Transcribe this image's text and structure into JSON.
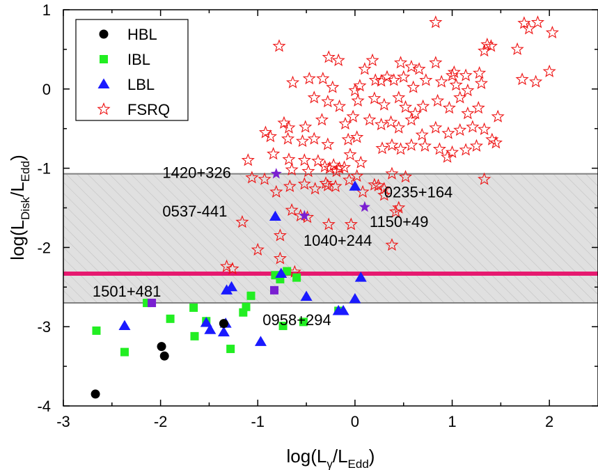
{
  "chart_data": {
    "type": "scatter",
    "xlabel": {
      "prefix": "log(L",
      "sub": "γ",
      "mid": "/L",
      "sub2": "Edd",
      "suffix": ")"
    },
    "ylabel": {
      "prefix": "log(L",
      "sub": "Disk",
      "mid": "/L",
      "sub2": "Edd",
      "suffix": ")"
    },
    "xlim": [
      -3,
      2.5
    ],
    "ylim": [
      -4,
      1
    ],
    "xticks": [
      -3,
      -2,
      -1,
      0,
      1,
      2
    ],
    "yticks": [
      -4,
      -3,
      -2,
      -1,
      0,
      1
    ],
    "grid": false,
    "legend_position": "top-left",
    "band": {
      "ymin": -2.7,
      "ymax": -1.07,
      "color": "#e0e0e0",
      "edge_color": "#808080"
    },
    "hline": {
      "y": -2.33,
      "color": "#e6196f"
    },
    "series": [
      {
        "name": "HBL",
        "marker": "circle",
        "color": "#000000",
        "points": [
          [
            -2.67,
            -3.85
          ],
          [
            -1.99,
            -3.25
          ],
          [
            -1.96,
            -3.37
          ],
          [
            -1.35,
            -2.96
          ]
        ]
      },
      {
        "name": "IBL",
        "marker": "square",
        "color": "#22ee22",
        "points": [
          [
            -2.66,
            -3.05
          ],
          [
            -2.37,
            -3.32
          ],
          [
            -2.14,
            -2.7
          ],
          [
            -1.9,
            -2.9
          ],
          [
            -1.66,
            -2.76
          ],
          [
            -1.65,
            -3.12
          ],
          [
            -1.53,
            -2.93
          ],
          [
            -1.28,
            -3.28
          ],
          [
            -1.15,
            -2.82
          ],
          [
            -1.12,
            -2.75
          ],
          [
            -1.07,
            -2.61
          ],
          [
            -0.82,
            -2.35
          ],
          [
            -0.77,
            -2.4
          ],
          [
            -0.74,
            -2.99
          ],
          [
            -0.53,
            -2.94
          ],
          [
            -0.17,
            -2.8
          ],
          [
            -0.7,
            -2.3
          ],
          [
            -0.6,
            -2.38
          ]
        ]
      },
      {
        "name": "LBL",
        "marker": "triangle",
        "color": "#1a1aff",
        "points": [
          [
            -2.37,
            -2.99
          ],
          [
            -1.53,
            -2.95
          ],
          [
            -1.49,
            -3.04
          ],
          [
            -1.35,
            -3.07
          ],
          [
            -1.33,
            -2.96
          ],
          [
            -1.32,
            -2.54
          ],
          [
            -1.27,
            -2.5
          ],
          [
            -0.97,
            -3.19
          ],
          [
            -0.82,
            -1.61
          ],
          [
            -0.76,
            -2.33
          ],
          [
            -0.5,
            -2.62
          ],
          [
            -0.17,
            -2.8
          ],
          [
            -0.12,
            -2.8
          ],
          [
            0.0,
            -2.65
          ],
          [
            0.06,
            -2.38
          ],
          [
            0.0,
            -1.23
          ]
        ]
      },
      {
        "name": "FSRQ",
        "marker": "star-open",
        "color": "#ee1111",
        "points": [
          [
            -0.78,
            0.54
          ],
          [
            0.83,
            0.84
          ],
          [
            1.74,
            0.83
          ],
          [
            1.88,
            0.84
          ],
          [
            1.79,
            0.76
          ],
          [
            2.03,
            0.71
          ],
          [
            1.36,
            0.56
          ],
          [
            1.33,
            0.48
          ],
          [
            1.4,
            0.54
          ],
          [
            1.67,
            0.5
          ],
          [
            -0.27,
            0.4
          ],
          [
            -0.17,
            0.36
          ],
          [
            0.18,
            0.36
          ],
          [
            0.1,
            0.25
          ],
          [
            0.58,
            0.28
          ],
          [
            0.66,
            0.25
          ],
          [
            0.47,
            0.33
          ],
          [
            0.83,
            0.33
          ],
          [
            1.0,
            0.17
          ],
          [
            1.02,
            0.21
          ],
          [
            1.14,
            0.17
          ],
          [
            1.28,
            0.2
          ],
          [
            1.72,
            0.12
          ],
          [
            1.86,
            0.09
          ],
          [
            2.0,
            0.22
          ],
          [
            -0.64,
            0.08
          ],
          [
            -0.47,
            0.13
          ],
          [
            -0.33,
            0.13
          ],
          [
            -0.23,
            0.02
          ],
          [
            0.0,
            -0.02
          ],
          [
            0.05,
            0.04
          ],
          [
            0.21,
            0.11
          ],
          [
            0.27,
            0.1
          ],
          [
            0.33,
            0.15
          ],
          [
            0.4,
            0.11
          ],
          [
            0.5,
            0.15
          ],
          [
            0.6,
            0.02
          ],
          [
            0.73,
            0.11
          ],
          [
            0.89,
            0.09
          ],
          [
            1.04,
            0.05
          ],
          [
            1.16,
            -0.02
          ],
          [
            1.3,
            0.07
          ],
          [
            -0.42,
            -0.11
          ],
          [
            -0.28,
            -0.16
          ],
          [
            -0.16,
            -0.22
          ],
          [
            0.03,
            -0.15
          ],
          [
            0.2,
            -0.12
          ],
          [
            0.3,
            -0.2
          ],
          [
            0.45,
            -0.11
          ],
          [
            0.52,
            -0.23
          ],
          [
            0.62,
            -0.31
          ],
          [
            0.7,
            -0.22
          ],
          [
            0.85,
            -0.15
          ],
          [
            0.97,
            -0.24
          ],
          [
            1.08,
            -0.11
          ],
          [
            1.16,
            -0.31
          ],
          [
            1.27,
            -0.24
          ],
          [
            1.47,
            -0.35
          ],
          [
            -0.73,
            -0.43
          ],
          [
            -0.68,
            -0.49
          ],
          [
            -0.51,
            -0.48
          ],
          [
            -0.34,
            -0.39
          ],
          [
            -0.1,
            -0.44
          ],
          [
            -0.02,
            -0.35
          ],
          [
            0.15,
            -0.39
          ],
          [
            0.27,
            -0.45
          ],
          [
            0.37,
            -0.42
          ],
          [
            0.45,
            -0.49
          ],
          [
            0.58,
            -0.39
          ],
          [
            0.69,
            -0.58
          ],
          [
            0.83,
            -0.49
          ],
          [
            0.96,
            -0.56
          ],
          [
            1.08,
            -0.52
          ],
          [
            1.21,
            -0.48
          ],
          [
            1.33,
            -0.51
          ],
          [
            -0.92,
            -0.55
          ],
          [
            -0.87,
            -0.6
          ],
          [
            -0.69,
            -0.63
          ],
          [
            -0.54,
            -0.66
          ],
          [
            -0.42,
            -0.63
          ],
          [
            -0.28,
            -0.7
          ],
          [
            -0.07,
            -0.64
          ],
          [
            0.02,
            -0.61
          ],
          [
            0.28,
            -0.75
          ],
          [
            0.38,
            -0.71
          ],
          [
            0.47,
            -0.76
          ],
          [
            0.58,
            -0.71
          ],
          [
            0.72,
            -0.72
          ],
          [
            0.87,
            -0.76
          ],
          [
            1.0,
            -0.8
          ],
          [
            1.14,
            -0.77
          ],
          [
            1.25,
            -0.72
          ],
          [
            1.41,
            -0.64
          ],
          [
            1.45,
            -0.68
          ],
          [
            -1.1,
            -0.9
          ],
          [
            -0.84,
            -0.82
          ],
          [
            -0.68,
            -0.89
          ],
          [
            -0.52,
            -0.9
          ],
          [
            -0.38,
            -0.91
          ],
          [
            -0.22,
            -0.96
          ],
          [
            -0.16,
            -1.0
          ],
          [
            -0.05,
            -0.83
          ],
          [
            0.06,
            -0.93
          ],
          [
            0.95,
            -0.86
          ],
          [
            -0.65,
            -1.02
          ],
          [
            -0.48,
            -1.04
          ],
          [
            -0.31,
            -0.98
          ],
          [
            -0.26,
            -1.0
          ],
          [
            -0.19,
            -1.04
          ],
          [
            -0.11,
            -0.99
          ],
          [
            -1.06,
            -1.12
          ],
          [
            -0.93,
            -1.14
          ],
          [
            -0.67,
            -1.23
          ],
          [
            -0.52,
            -1.2
          ],
          [
            -0.3,
            -1.19
          ],
          [
            -0.2,
            -1.23
          ],
          [
            -0.06,
            -1.15
          ],
          [
            0.02,
            -1.1
          ],
          [
            0.24,
            -1.22
          ],
          [
            0.3,
            -1.26
          ],
          [
            0.38,
            -1.07
          ],
          [
            0.52,
            -1.11
          ],
          [
            1.33,
            -1.14
          ],
          [
            -0.81,
            -1.3
          ],
          [
            -0.41,
            -1.26
          ],
          [
            -0.28,
            -1.22
          ],
          [
            0.08,
            -1.3
          ],
          [
            0.3,
            -1.34
          ],
          [
            0.2,
            -1.21
          ],
          [
            -1.16,
            -1.68
          ],
          [
            -0.65,
            -1.53
          ],
          [
            -0.56,
            -1.6
          ],
          [
            -0.49,
            -1.62
          ],
          [
            -0.27,
            -1.71
          ],
          [
            -0.04,
            -1.71
          ],
          [
            0.42,
            -1.55
          ],
          [
            0.45,
            -1.5
          ],
          [
            -0.77,
            -1.85
          ],
          [
            -1.0,
            -2.03
          ],
          [
            -0.77,
            -2.14
          ],
          [
            0.38,
            -1.97
          ],
          [
            -1.32,
            -2.24
          ],
          [
            -1.26,
            -2.27
          ],
          [
            -0.62,
            -2.31
          ]
        ]
      },
      {
        "name": "",
        "marker": "star-filled",
        "color": "#7a1fd1",
        "points": [
          [
            -0.81,
            -1.07
          ],
          [
            -0.52,
            -1.6
          ],
          [
            0.1,
            -1.49
          ]
        ]
      },
      {
        "name": "",
        "marker": "square",
        "color": "#7a1fd1",
        "points": [
          [
            -2.09,
            -2.7
          ],
          [
            -0.83,
            -2.54
          ]
        ]
      }
    ],
    "annotations": [
      {
        "text": "1420+326",
        "x": -1.98,
        "y": -1.12
      },
      {
        "text": "0235+164",
        "x": 0.3,
        "y": -1.37
      },
      {
        "text": "0537-441",
        "x": -1.98,
        "y": -1.61
      },
      {
        "text": "1150+49",
        "x": 0.15,
        "y": -1.74
      },
      {
        "text": "1040+244",
        "x": -0.53,
        "y": -1.98
      },
      {
        "text": "1501+481",
        "x": -2.7,
        "y": -2.62
      },
      {
        "text": "0958+294",
        "x": -0.95,
        "y": -2.98
      }
    ]
  }
}
